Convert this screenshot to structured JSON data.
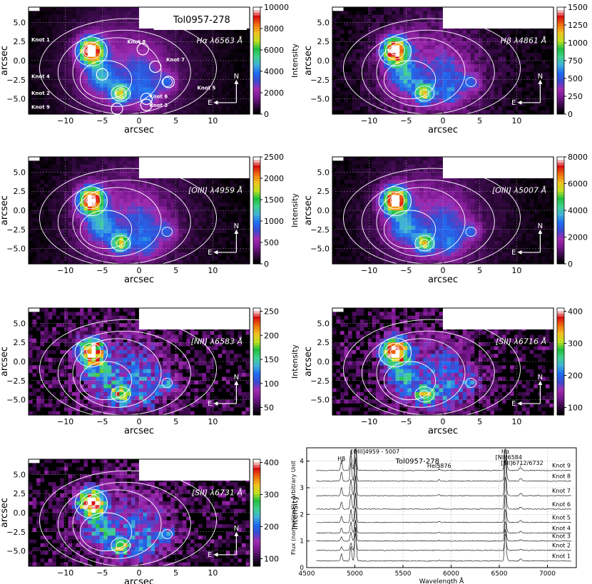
{
  "colors": {
    "cmap": [
      "#000000",
      "#3a0a4a",
      "#7a1890",
      "#a02cb0",
      "#3a4ad0",
      "#1e6cf0",
      "#40b0d8",
      "#40d090",
      "#20c040",
      "#c0e020",
      "#f0c020",
      "#f07010",
      "#d81010",
      "#ffffff"
    ],
    "contour": "#ffffff",
    "spectrum_line": "#000000"
  },
  "panels": [
    {
      "id": "halpha",
      "line_label": "Hα λ6563 Å",
      "cb_label": "Intensity",
      "cb_ticks": [
        "0",
        "2000",
        "4000",
        "6000",
        "8000",
        "10000"
      ],
      "xlabel": "arcsec",
      "ylabel": "arcsec",
      "xticks": [
        "−10",
        "−5",
        "0",
        "5",
        "10"
      ],
      "yticks": [
        "5.0",
        "2.5",
        "0.0",
        "−2.5",
        "−5.0"
      ],
      "compass": {
        "n": "N",
        "e": "E"
      },
      "title_box": "Tol0957-278",
      "knot_labels": [
        "Knot 1",
        "Knot 8",
        "Knot 7",
        "Knot 4",
        "Knot 5",
        "Knot 2",
        "Knot 6",
        "Knot 9",
        "Knot 3"
      ],
      "noise": 0.05
    },
    {
      "id": "hbeta",
      "line_label": "Hβ λ4861 Å",
      "cb_label": "Intensity",
      "cb_ticks": [
        "0",
        "250",
        "500",
        "750",
        "1000",
        "1250",
        "1500"
      ],
      "xlabel": "arcsec",
      "ylabel": "arcsec",
      "xticks": [
        "−10",
        "−5",
        "0",
        "5",
        "10"
      ],
      "yticks": [
        "5.0",
        "2.5",
        "0.0",
        "−2.5",
        "−5.0"
      ],
      "compass": {
        "n": "N",
        "e": "E"
      },
      "noise": 0.12
    },
    {
      "id": "oiii4959",
      "line_label": "[OIII] λ4959 Å",
      "cb_label": "Intensity",
      "cb_ticks": [
        "0",
        "500",
        "1000",
        "1500",
        "2000",
        "2500"
      ],
      "xlabel": "arcsec",
      "ylabel": "arcsec",
      "xticks": [
        "−10",
        "−5",
        "0",
        "5",
        "10"
      ],
      "yticks": [
        "5.0",
        "2.5",
        "0.0",
        "−2.5",
        "−5.0"
      ],
      "compass": {
        "n": "N",
        "e": "E"
      },
      "noise": 0.08
    },
    {
      "id": "oiii5007",
      "line_label": "[OIII] λ5007 Å",
      "cb_label": "Intensity",
      "cb_ticks": [
        "0",
        "2000",
        "4000",
        "6000",
        "8000"
      ],
      "xlabel": "arcsec",
      "ylabel": "arcsec",
      "xticks": [
        "−10",
        "−5",
        "0",
        "5",
        "10"
      ],
      "yticks": [
        "5.0",
        "2.5",
        "0.0",
        "−2.5",
        "−5.0"
      ],
      "compass": {
        "n": "N",
        "e": "E"
      },
      "noise": 0.07
    },
    {
      "id": "nii6583",
      "line_label": "[NII] λ6583 Å",
      "cb_label": "Intensity",
      "cb_ticks": [
        "50",
        "100",
        "150",
        "200",
        "250"
      ],
      "xlabel": "arcsec",
      "ylabel": "arcsec",
      "xticks": [
        "−10",
        "−5",
        "0",
        "5",
        "10"
      ],
      "yticks": [
        "5.0",
        "2.5",
        "0.0",
        "−2.5",
        "−5.0"
      ],
      "compass": {
        "n": "N",
        "e": "E"
      },
      "noise": 0.35
    },
    {
      "id": "sii6716",
      "line_label": "[SII] λ6716 Å",
      "cb_label": "Intensity",
      "cb_ticks": [
        "100",
        "200",
        "300",
        "400"
      ],
      "xlabel": "arcsec",
      "ylabel": "arcsec",
      "xticks": [
        "−10",
        "−5",
        "0",
        "5",
        "10"
      ],
      "yticks": [
        "5.0",
        "2.5",
        "0.0",
        "−2.5",
        "−5.0"
      ],
      "compass": {
        "n": "N",
        "e": "E"
      },
      "noise": 0.3
    },
    {
      "id": "sii6731",
      "line_label": "[SII] λ6731 Å",
      "cb_label": "Intensity",
      "cb_ticks": [
        "100",
        "200",
        "300",
        "400"
      ],
      "xlabel": "arcsec",
      "ylabel": "arcsec",
      "xticks": [
        "−10",
        "−5",
        "0",
        "5",
        "10"
      ],
      "yticks": [
        "5.0",
        "2.5",
        "0.0",
        "−2.5",
        "−5.0"
      ],
      "compass": {
        "n": "N",
        "e": "E"
      },
      "noise": 0.3
    }
  ],
  "chart_data": [
    {
      "type": "heatmap",
      "title": "Hα λ6563 Å",
      "xlabel": "arcsec",
      "ylabel": "arcsec",
      "xlim": [
        -15,
        15
      ],
      "ylim": [
        -7,
        7
      ],
      "colorbar": {
        "label": "Intensity",
        "range": [
          0,
          10000
        ]
      },
      "knots": [
        "Knot 1",
        "Knot 2",
        "Knot 3",
        "Knot 4",
        "Knot 5",
        "Knot 6",
        "Knot 7",
        "Knot 8",
        "Knot 9"
      ]
    },
    {
      "type": "heatmap",
      "title": "Hβ λ4861 Å",
      "xlabel": "arcsec",
      "ylabel": "arcsec",
      "xlim": [
        -15,
        15
      ],
      "ylim": [
        -7,
        7
      ],
      "colorbar": {
        "label": "Intensity",
        "range": [
          0,
          1600
        ]
      }
    },
    {
      "type": "heatmap",
      "title": "[OIII] λ4959 Å",
      "xlabel": "arcsec",
      "ylabel": "arcsec",
      "xlim": [
        -15,
        15
      ],
      "ylim": [
        -7,
        7
      ],
      "colorbar": {
        "label": "Intensity",
        "range": [
          0,
          2500
        ]
      }
    },
    {
      "type": "heatmap",
      "title": "[OIII] λ5007 Å",
      "xlabel": "arcsec",
      "ylabel": "arcsec",
      "xlim": [
        -15,
        15
      ],
      "ylim": [
        -7,
        7
      ],
      "colorbar": {
        "label": "Intensity",
        "range": [
          0,
          8000
        ]
      }
    },
    {
      "type": "heatmap",
      "title": "[NII] λ6583 Å",
      "xlabel": "arcsec",
      "ylabel": "arcsec",
      "xlim": [
        -15,
        15
      ],
      "ylim": [
        -7,
        7
      ],
      "colorbar": {
        "label": "Intensity",
        "range": [
          10,
          250
        ]
      }
    },
    {
      "type": "heatmap",
      "title": "[SII] λ6716 Å",
      "xlabel": "arcsec",
      "ylabel": "arcsec",
      "xlim": [
        -15,
        15
      ],
      "ylim": [
        -7,
        7
      ],
      "colorbar": {
        "label": "Intensity",
        "range": [
          20,
          400
        ]
      }
    },
    {
      "type": "heatmap",
      "title": "[SII] λ6731 Å",
      "xlabel": "arcsec",
      "ylabel": "arcsec",
      "xlim": [
        -15,
        15
      ],
      "ylim": [
        -7,
        7
      ],
      "colorbar": {
        "label": "Intensity",
        "range": [
          20,
          400
        ]
      }
    },
    {
      "type": "line",
      "title": "Tol0957-278",
      "xlabel": "Wavelength Å",
      "ylabel": "Flux (normalized) - Arbitrary Unit",
      "xlim": [
        4500,
        7300
      ],
      "ylim": [
        0,
        4.5
      ],
      "xticks": [
        "4500",
        "5000",
        "5500",
        "6000",
        "6500",
        "7000"
      ],
      "yticks": [
        "0",
        "1",
        "2",
        "3",
        "4"
      ],
      "series": [
        {
          "name": "Knot 1",
          "offset": 0.25
        },
        {
          "name": "Knot 2",
          "offset": 0.65
        },
        {
          "name": "Knot 3",
          "offset": 1.0
        },
        {
          "name": "Knot 4",
          "offset": 1.3
        },
        {
          "name": "Knot 5",
          "offset": 1.7
        },
        {
          "name": "Knot 6",
          "offset": 2.2
        },
        {
          "name": "Knot 7",
          "offset": 2.7
        },
        {
          "name": "Knot 8",
          "offset": 3.25
        },
        {
          "name": "Knot 9",
          "offset": 3.65
        }
      ],
      "annotations": [
        {
          "text": "[OIII]4959 - 5007",
          "x": 4959
        },
        {
          "text": "Hβ",
          "x": 4861
        },
        {
          "text": "HeI5876",
          "x": 5876
        },
        {
          "text": "Hα",
          "x": 6563
        },
        {
          "text": "[NII]6584",
          "x": 6584
        },
        {
          "text": "[SII]6712/6732",
          "x": 6722
        }
      ],
      "emission_lines": [
        4861,
        4959,
        5007,
        5876,
        6563,
        6584,
        6716,
        6731
      ]
    }
  ]
}
